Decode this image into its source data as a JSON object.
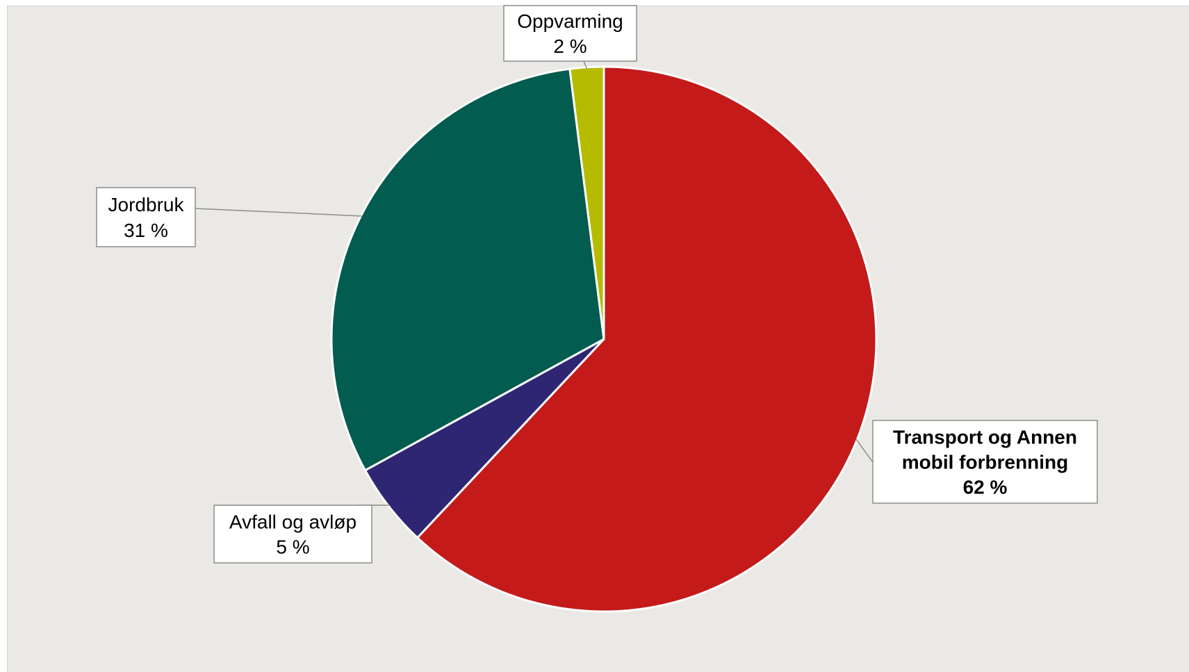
{
  "chart_data": {
    "type": "pie",
    "title": "",
    "slices": [
      {
        "name": "Transport og Annen mobil forbrenning",
        "label_lines": [
          "Transport og Annen",
          "mobil forbrenning",
          "62 %"
        ],
        "value": 62,
        "color": "#c41a1a",
        "bold": true
      },
      {
        "name": "Avfall og avløp",
        "label_lines": [
          "Avfall og avløp",
          "5 %"
        ],
        "value": 5,
        "color": "#2e2673",
        "bold": false
      },
      {
        "name": "Jordbruk",
        "label_lines": [
          "Jordbruk",
          "31 %"
        ],
        "value": 31,
        "color": "#025c4f",
        "bold": false
      },
      {
        "name": "Oppvarming",
        "label_lines": [
          "Oppvarming",
          "2 %"
        ],
        "value": 2,
        "color": "#b5bc00",
        "bold": false
      }
    ],
    "start_angle": "12 o'clock",
    "direction": "clockwise",
    "legend": "none",
    "data_labels": "callouts"
  },
  "colors": {
    "background": "#ebe9e5",
    "slice_border": "#ffffff"
  }
}
